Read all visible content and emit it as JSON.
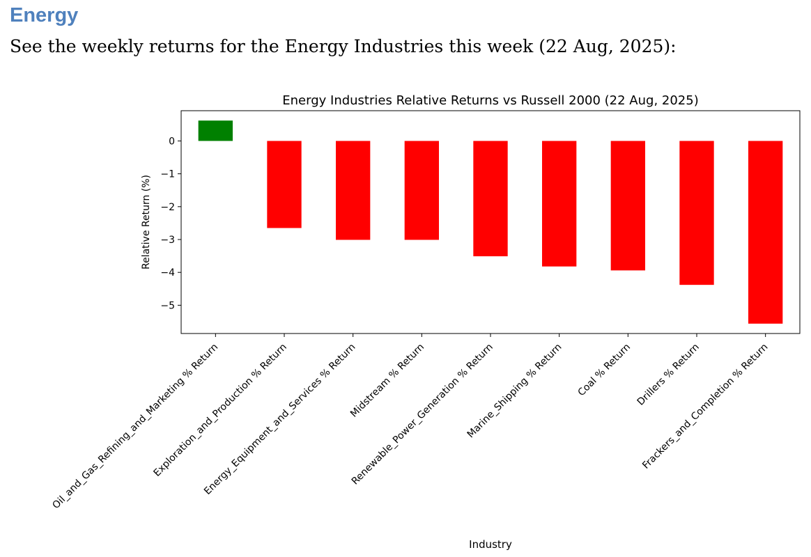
{
  "document": {
    "heading": "Energy",
    "intro": "See the weekly returns for the Energy Industries this week (22 Aug, 2025):"
  },
  "chart_data": {
    "type": "bar",
    "title": "Energy Industries Relative Returns vs Russell 2000 (22 Aug, 2025)",
    "xlabel": "Industry",
    "ylabel": "Relative Return (%)",
    "ylim": [
      -5.86,
      0.92
    ],
    "yticks": [
      0,
      -1,
      -2,
      -3,
      -4,
      -5
    ],
    "ytick_labels": [
      "0",
      "−1",
      "−2",
      "−3",
      "−4",
      "−5"
    ],
    "grid": false,
    "categories": [
      "Oil_and_Gas_Refining_and_Marketing % Return",
      "Exploration_and_Production % Return",
      "Energy_Equipment_and_Services % Return",
      "Midstream % Return",
      "Renewable_Power_Generation % Return",
      "Marine_Shipping % Return",
      "Coal % Return",
      "Drillers % Return",
      "Frackers_and_Completion % Return"
    ],
    "values": [
      0.62,
      -2.65,
      -3.01,
      -3.01,
      -3.51,
      -3.82,
      -3.94,
      -4.38,
      -5.56
    ],
    "colors": {
      "positive": "#008000",
      "negative": "#ff0000"
    }
  }
}
